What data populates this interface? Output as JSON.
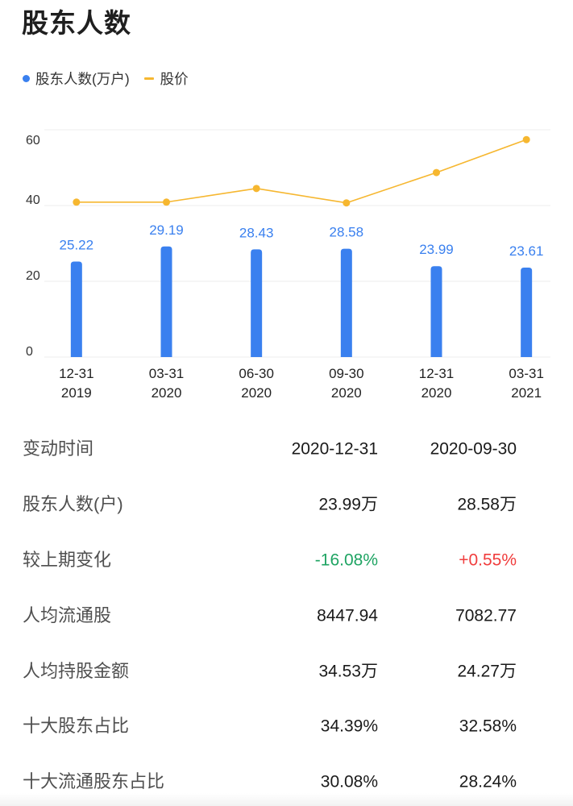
{
  "section": {
    "title": "股东人数"
  },
  "colors": {
    "bar": "#3a80ef",
    "line": "#f6b730"
  },
  "chart_data": {
    "type": "bar",
    "categories": [
      [
        "12-31",
        "2019"
      ],
      [
        "03-31",
        "2020"
      ],
      [
        "06-30",
        "2020"
      ],
      [
        "09-30",
        "2020"
      ],
      [
        "12-31",
        "2020"
      ],
      [
        "03-31",
        "2021"
      ]
    ],
    "series": [
      {
        "name": "股东人数(万户)",
        "type": "bar",
        "values": [
          25.22,
          29.19,
          28.43,
          28.58,
          23.99,
          23.61
        ]
      },
      {
        "name": "股价",
        "type": "line",
        "values": [
          40.9,
          40.9,
          44.5,
          40.7,
          48.7,
          57.4
        ]
      }
    ],
    "ylim": [
      0,
      60
    ],
    "yticks": [
      0,
      20,
      40,
      60
    ],
    "grid": true,
    "legend_position": "top-left"
  },
  "table": {
    "header": {
      "label": "变动时间",
      "values": [
        "2020-12-31",
        "2020-09-30"
      ]
    },
    "rows": [
      {
        "label": "股东人数(户)",
        "values": [
          "23.99万",
          "28.58万"
        ]
      },
      {
        "label": "较上期变化",
        "values": [
          "-16.08%",
          "+0.55%"
        ],
        "value_colors": [
          "#1fa463",
          "#f03d3d"
        ]
      },
      {
        "label": "人均流通股",
        "values": [
          "8447.94",
          "7082.77"
        ]
      },
      {
        "label": "人均持股金额",
        "values": [
          "34.53万",
          "24.27万"
        ]
      },
      {
        "label": "十大股东占比",
        "values": [
          "34.39%",
          "32.58%"
        ]
      },
      {
        "label": "十大流通股东占比",
        "values": [
          "30.08%",
          "28.24%"
        ]
      }
    ]
  }
}
